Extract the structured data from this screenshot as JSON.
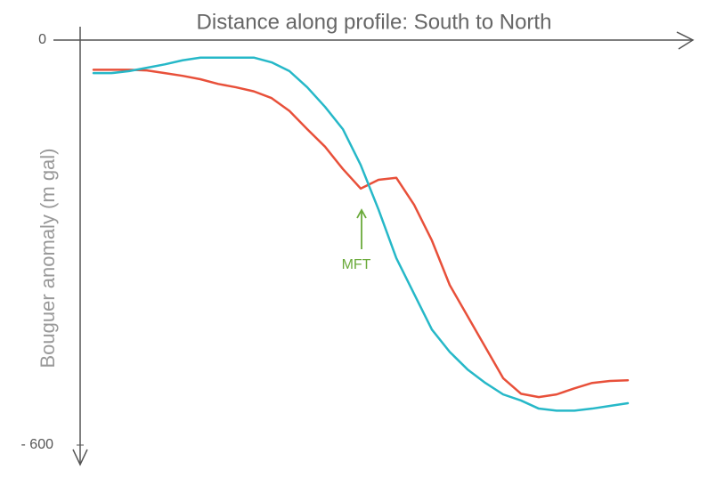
{
  "chart_data": {
    "type": "line",
    "title": "Distance along profile: South to North",
    "y_label": "Bouguer anomaly (m gal)",
    "annotation": "MFT",
    "categories": [
      null,
      null,
      null,
      null,
      null,
      null,
      null,
      null,
      null,
      null,
      null,
      null,
      null,
      null,
      null,
      null,
      null,
      null,
      null,
      null,
      null,
      null,
      null,
      null,
      null,
      null,
      null,
      null,
      null,
      null,
      null
    ],
    "series": [
      {
        "color": "#e8503a",
        "values": [
          -44,
          -44,
          -44,
          -45,
          -49,
          -53,
          -58,
          -65,
          -70,
          -76,
          -86,
          -105,
          -132,
          -158,
          -191,
          -220,
          -207,
          -204,
          -244,
          -297,
          -363,
          -409,
          -455,
          -501,
          -524,
          -529,
          -525,
          -516,
          -508,
          -505,
          -504
        ]
      },
      {
        "color": "#26b8c8",
        "values": [
          -49,
          -49,
          -46,
          -41,
          -36,
          -30,
          -26,
          -26,
          -26,
          -26,
          -33,
          -46,
          -70,
          -99,
          -132,
          -185,
          -251,
          -323,
          -376,
          -429,
          -462,
          -488,
          -508,
          -525,
          -534,
          -546,
          -549,
          -549,
          -546,
          -542,
          -538
        ]
      }
    ],
    "ylim": [
      -600,
      0
    ],
    "yticks": [
      0,
      {
        "value": -600,
        "label": "- 600"
      }
    ],
    "grid": false
  }
}
